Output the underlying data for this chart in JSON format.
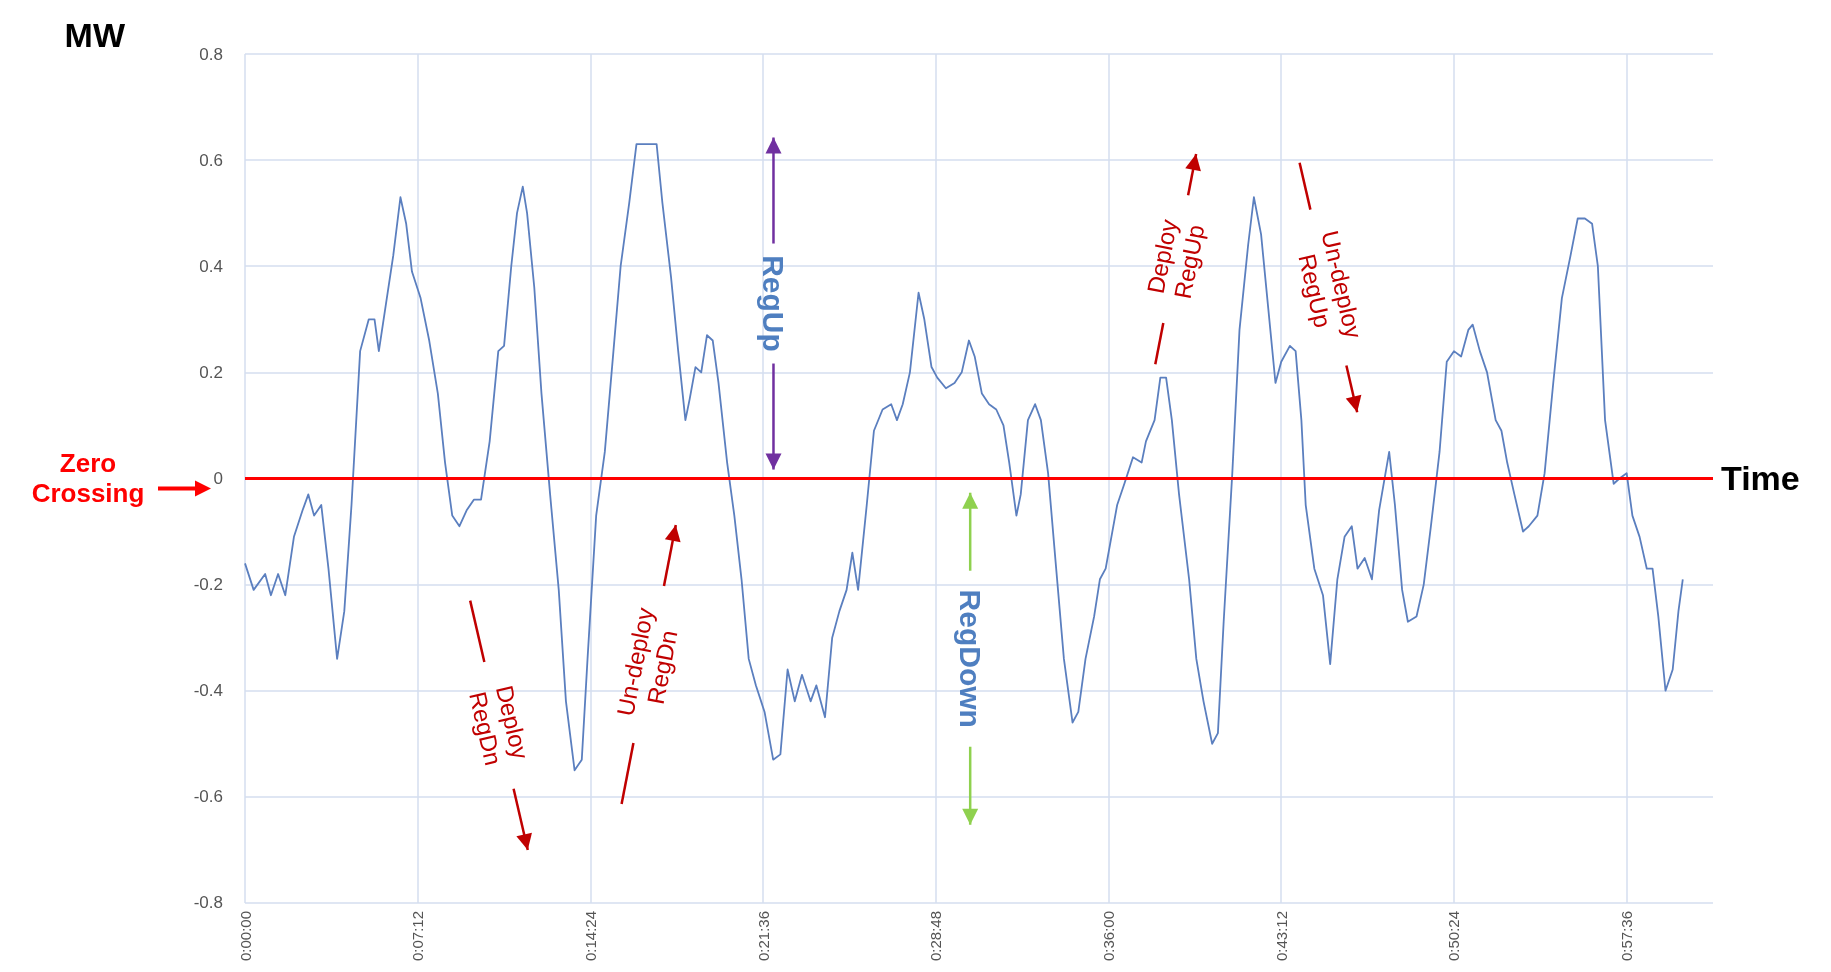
{
  "chart_data": {
    "type": "line",
    "xlabel": "Time",
    "ylabel": "MW",
    "x": [
      0,
      0.006,
      0.014,
      0.018,
      0.023,
      0.028,
      0.034,
      0.04,
      0.044,
      0.048,
      0.053,
      0.058,
      0.064,
      0.069,
      0.074,
      0.08,
      0.086,
      0.09,
      0.093,
      0.098,
      0.103,
      0.108,
      0.112,
      0.116,
      0.122,
      0.128,
      0.134,
      0.139,
      0.144,
      0.149,
      0.154,
      0.159,
      0.164,
      0.17,
      0.176,
      0.18,
      0.185,
      0.189,
      0.193,
      0.196,
      0.201,
      0.206,
      0.212,
      0.218,
      0.223,
      0.229,
      0.234,
      0.238,
      0.244,
      0.25,
      0.256,
      0.261,
      0.267,
      0.272,
      0.277,
      0.281,
      0.286,
      0.29,
      0.296,
      0.301,
      0.306,
      0.309,
      0.313,
      0.317,
      0.321,
      0.325,
      0.329,
      0.335,
      0.34,
      0.345,
      0.35,
      0.355,
      0.361,
      0.367,
      0.372,
      0.377,
      0.382,
      0.387,
      0.393,
      0.397,
      0.403,
      0.408,
      0.413,
      0.418,
      0.422,
      0.426,
      0.432,
      0.437,
      0.443,
      0.449,
      0.453,
      0.457,
      0.462,
      0.468,
      0.472,
      0.477,
      0.481,
      0.487,
      0.493,
      0.498,
      0.503,
      0.507,
      0.512,
      0.517,
      0.522,
      0.527,
      0.531,
      0.536,
      0.539,
      0.544,
      0.549,
      0.553,
      0.558,
      0.563,
      0.569,
      0.575,
      0.579,
      0.584,
      0.59,
      0.594,
      0.598,
      0.602,
      0.606,
      0.611,
      0.617,
      0.623,
      0.626,
      0.632,
      0.636,
      0.64,
      0.644,
      0.649,
      0.656,
      0.661,
      0.666,
      0.672,
      0.676,
      0.68,
      0.686,
      0.691,
      0.697,
      0.701,
      0.706,
      0.711,
      0.716,
      0.72,
      0.726,
      0.73,
      0.734,
      0.737,
      0.743,
      0.749,
      0.754,
      0.759,
      0.764,
      0.769,
      0.773,
      0.778,
      0.783,
      0.788,
      0.795,
      0.799,
      0.804,
      0.808,
      0.814,
      0.819,
      0.824,
      0.83,
      0.835,
      0.84,
      0.845,
      0.85,
      0.853,
      0.858,
      0.863,
      0.869,
      0.873,
      0.877,
      0.882,
      0.888,
      0.892,
      0.898,
      0.903,
      0.909,
      0.915,
      0.921,
      0.926,
      0.931,
      0.936,
      0.94,
      0.945,
      0.951,
      0.955,
      0.96,
      0.964,
      0.969,
      0.974,
      0.978,
      0.982,
      0.987,
      0.992,
      0.996,
      0.999
    ],
    "series": [
      {
        "color": "#5b7fbf",
        "values": [
          -0.16,
          -0.21,
          -0.18,
          -0.22,
          -0.18,
          -0.22,
          -0.11,
          -0.06,
          -0.03,
          -0.07,
          -0.05,
          -0.17,
          -0.34,
          -0.25,
          -0.05,
          0.24,
          0.3,
          0.3,
          0.24,
          0.33,
          0.42,
          0.53,
          0.48,
          0.39,
          0.34,
          0.26,
          0.16,
          0.03,
          -0.07,
          -0.09,
          -0.06,
          -0.04,
          -0.04,
          0.07,
          0.24,
          0.25,
          0.4,
          0.5,
          0.55,
          0.5,
          0.36,
          0.16,
          -0.03,
          -0.21,
          -0.42,
          -0.55,
          -0.53,
          -0.34,
          -0.07,
          0.05,
          0.24,
          0.4,
          0.52,
          0.63,
          0.63,
          0.63,
          0.63,
          0.52,
          0.38,
          0.24,
          0.11,
          0.15,
          0.21,
          0.2,
          0.27,
          0.26,
          0.18,
          0.03,
          -0.07,
          -0.19,
          -0.34,
          -0.39,
          -0.44,
          -0.53,
          -0.52,
          -0.36,
          -0.42,
          -0.37,
          -0.42,
          -0.39,
          -0.45,
          -0.3,
          -0.25,
          -0.21,
          -0.14,
          -0.21,
          -0.05,
          0.09,
          0.13,
          0.14,
          0.11,
          0.14,
          0.2,
          0.35,
          0.3,
          0.21,
          0.19,
          0.17,
          0.18,
          0.2,
          0.26,
          0.23,
          0.16,
          0.14,
          0.13,
          0.1,
          0.03,
          -0.07,
          -0.03,
          0.11,
          0.14,
          0.11,
          0.01,
          -0.15,
          -0.34,
          -0.46,
          -0.44,
          -0.34,
          -0.26,
          -0.19,
          -0.17,
          -0.11,
          -0.05,
          -0.01,
          0.04,
          0.03,
          0.07,
          0.11,
          0.19,
          0.19,
          0.11,
          -0.03,
          -0.19,
          -0.34,
          -0.42,
          -0.5,
          -0.48,
          -0.27,
          0.01,
          0.28,
          0.44,
          0.53,
          0.46,
          0.32,
          0.18,
          0.22,
          0.25,
          0.24,
          0.11,
          -0.05,
          -0.17,
          -0.22,
          -0.35,
          -0.19,
          -0.11,
          -0.09,
          -0.17,
          -0.15,
          -0.19,
          -0.06,
          0.05,
          -0.05,
          -0.21,
          -0.27,
          -0.26,
          -0.2,
          -0.09,
          0.05,
          0.22,
          0.24,
          0.23,
          0.28,
          0.29,
          0.24,
          0.2,
          0.11,
          0.09,
          0.03,
          -0.03,
          -0.1,
          -0.09,
          -0.07,
          0.01,
          0.18,
          0.34,
          0.42,
          0.49,
          0.49,
          0.48,
          0.4,
          0.11,
          -0.01,
          0.0,
          0.01,
          -0.07,
          -0.11,
          -0.17,
          -0.17,
          -0.26,
          -0.4,
          -0.36,
          -0.25,
          -0.19
        ]
      }
    ],
    "xlim": [
      0,
      1.02
    ],
    "xticks": [
      {
        "value": 0,
        "label": "0:00:00"
      },
      {
        "value": 0.12,
        "label": "0:07:12"
      },
      {
        "value": 0.24,
        "label": "0:14:24"
      },
      {
        "value": 0.36,
        "label": "0:21:36"
      },
      {
        "value": 0.48,
        "label": "0:28:48"
      },
      {
        "value": 0.6,
        "label": "0:36:00"
      },
      {
        "value": 0.72,
        "label": "0:43:12"
      },
      {
        "value": 0.84,
        "label": "0:50:24"
      },
      {
        "value": 0.96,
        "label": "0:57:36"
      }
    ],
    "ylim": [
      -0.8,
      0.8
    ],
    "yticks": [
      -0.8,
      -0.6,
      -0.4,
      -0.2,
      0,
      0.2,
      0.4,
      0.6,
      0.8
    ],
    "grid": true,
    "marker": "none",
    "ref_lines": [
      {
        "axis": "y",
        "value": 0,
        "label": "Zero Crossing",
        "color": "#ff0000"
      }
    ],
    "annotations": [
      "RegUp",
      "RegDown",
      "Deploy RegDn",
      "Un-deploy RegDn",
      "Deploy RegUp",
      "Un-deploy RegUp"
    ]
  }
}
